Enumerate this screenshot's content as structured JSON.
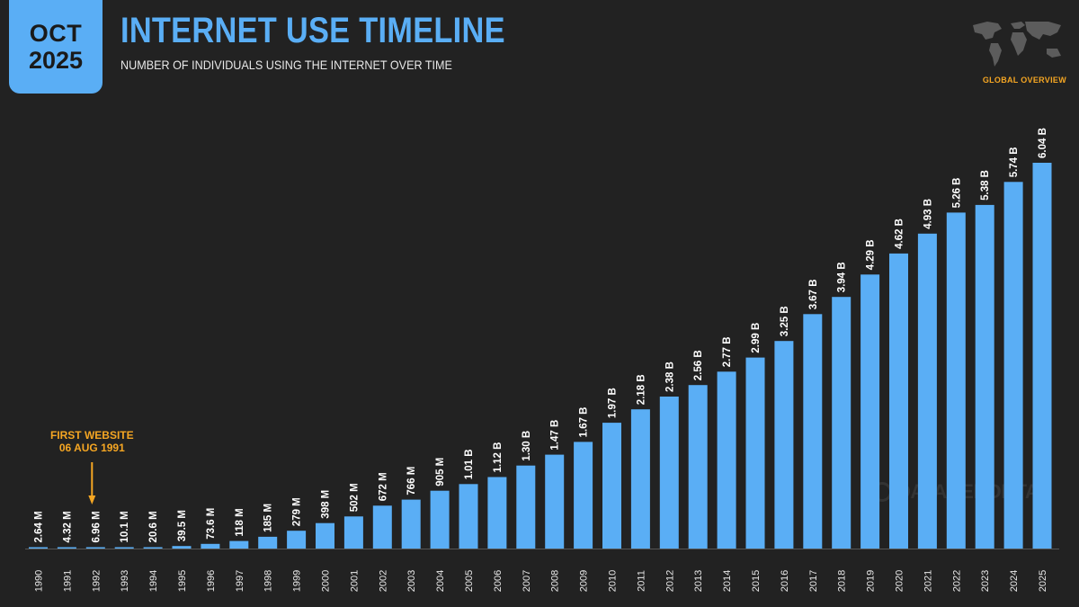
{
  "badge": {
    "month": "OCT",
    "year": "2025"
  },
  "header": {
    "title": "INTERNET USE TIMELINE",
    "subtitle": "NUMBER OF INDIVIDUALS USING THE INTERNET OVER TIME",
    "section": "GLOBAL OVERVIEW",
    "map_icon": "world-map-icon"
  },
  "watermark": "DATAREPORTAL",
  "colors": {
    "bar": "#5aaef5",
    "accent": "#f5a623",
    "background": "#222222",
    "label": "#ffffff"
  },
  "annotation": {
    "line1": "FIRST WEBSITE",
    "line2": "06 AUG 1991",
    "year": "1992"
  },
  "chart_data": {
    "type": "bar",
    "title": "INTERNET USE TIMELINE",
    "unit": "individuals",
    "categories": [
      "1990",
      "1991",
      "1992",
      "1993",
      "1994",
      "1995",
      "1996",
      "1997",
      "1998",
      "1999",
      "2000",
      "2001",
      "2002",
      "2003",
      "2004",
      "2005",
      "2006",
      "2007",
      "2008",
      "2009",
      "2010",
      "2011",
      "2012",
      "2013",
      "2014",
      "2015",
      "2016",
      "2017",
      "2018",
      "2019",
      "2020",
      "2021",
      "2022",
      "2023",
      "2024",
      "2025"
    ],
    "values": [
      2640000.0,
      4320000.0,
      6960000.0,
      10100000.0,
      20600000.0,
      39500000.0,
      73600000.0,
      118000000.0,
      185000000.0,
      279000000.0,
      398000000.0,
      502000000.0,
      672000000.0,
      766000000.0,
      905000000.0,
      1010000000.0,
      1120000000.0,
      1300000000.0,
      1470000000.0,
      1670000000.0,
      1970000000.0,
      2180000000.0,
      2380000000.0,
      2560000000.0,
      2770000000.0,
      2990000000.0,
      3250000000.0,
      3670000000.0,
      3940000000.0,
      4290000000.0,
      4620000000.0,
      4930000000.0,
      5260000000.0,
      5380000000.0,
      5740000000.0,
      6040000000.0
    ],
    "labels": [
      "2.64 M",
      "4.32 M",
      "6.96 M",
      "10.1 M",
      "20.6 M",
      "39.5 M",
      "73.6 M",
      "118 M",
      "185 M",
      "279 M",
      "398 M",
      "502 M",
      "672 M",
      "766 M",
      "905 M",
      "1.01 B",
      "1.12 B",
      "1.30 B",
      "1.47 B",
      "1.67 B",
      "1.97 B",
      "2.18 B",
      "2.38 B",
      "2.56 B",
      "2.77 B",
      "2.99 B",
      "3.25 B",
      "3.67 B",
      "3.94 B",
      "4.29 B",
      "4.62 B",
      "4.93 B",
      "5.26 B",
      "5.38 B",
      "5.74 B",
      "6.04 B"
    ],
    "ylim": [
      0,
      6040000000.0
    ],
    "grid": false,
    "legend": "none"
  }
}
